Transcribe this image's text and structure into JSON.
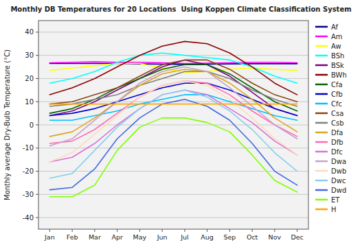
{
  "chart_data": {
    "type": "line",
    "title": "Monthly DB Temperatures for 20 Locations  Using Koppen Climate Classification System",
    "ylabel": "Monthly average Dry-Bulb Temperature (°C)",
    "categories": [
      "Jan",
      "Feb",
      "Mar",
      "Apr",
      "May",
      "Jun",
      "Jul",
      "Aug",
      "Sep",
      "Oct",
      "Nov",
      "Dec"
    ],
    "ylim": [
      -45,
      45
    ],
    "yticks": [
      -40,
      -30,
      -20,
      -10,
      0,
      10,
      20,
      30,
      40
    ],
    "grid": true,
    "legend": "right",
    "series": [
      {
        "name": "Af",
        "color": "#00008B",
        "values": [
          26.5,
          26.5,
          26.5,
          26.5,
          26.3,
          26.2,
          26.1,
          26.2,
          26.3,
          26.4,
          26.4,
          26.4
        ]
      },
      {
        "name": "Am",
        "color": "#FF00FF",
        "values": [
          26.8,
          27.0,
          27.2,
          27.0,
          27.0,
          26.8,
          26.5,
          26.6,
          26.8,
          27.0,
          27.0,
          26.8
        ]
      },
      {
        "name": "Aw",
        "color": "#FFFF00",
        "values": [
          23.5,
          24.5,
          25.5,
          26.5,
          26.5,
          24.5,
          22.5,
          23.0,
          24.0,
          24.5,
          24.0,
          23.5
        ]
      },
      {
        "name": "BSh",
        "color": "#00FFFF",
        "values": [
          18,
          20,
          23,
          27,
          30,
          31,
          30,
          29,
          28,
          25,
          21,
          18
        ]
      },
      {
        "name": "BSk",
        "color": "#800080",
        "values": [
          4,
          6,
          10,
          15,
          20,
          25,
          28,
          26,
          21,
          14,
          7,
          4
        ]
      },
      {
        "name": "BWh",
        "color": "#8B0000",
        "values": [
          13,
          16,
          20,
          25,
          30,
          34,
          36,
          35,
          31,
          25,
          18,
          13
        ]
      },
      {
        "name": "Cfa",
        "color": "#006400",
        "values": [
          5,
          7,
          11,
          16,
          20,
          24,
          26,
          26,
          22,
          16,
          10,
          6
        ]
      },
      {
        "name": "Cfb",
        "color": "#0000CD",
        "values": [
          4,
          5,
          7,
          10,
          13,
          16,
          18,
          18,
          15,
          11,
          7,
          4
        ]
      },
      {
        "name": "Cfc",
        "color": "#00BFFF",
        "values": [
          2,
          2,
          4,
          6,
          9,
          11,
          13,
          13,
          10,
          7,
          4,
          2
        ]
      },
      {
        "name": "Csa",
        "color": "#8B4513",
        "values": [
          9,
          10,
          13,
          16,
          21,
          26,
          28,
          28,
          24,
          18,
          13,
          10
        ]
      },
      {
        "name": "Csb",
        "color": "#808080",
        "values": [
          8,
          9,
          11,
          13,
          17,
          20,
          23,
          23,
          20,
          15,
          11,
          8
        ]
      },
      {
        "name": "Dfa",
        "color": "#DAA520",
        "values": [
          -5,
          -3,
          3,
          10,
          17,
          22,
          24,
          23,
          18,
          11,
          3,
          -3
        ]
      },
      {
        "name": "Dfb",
        "color": "#FF69B4",
        "values": [
          -8,
          -7,
          -2,
          5,
          12,
          17,
          19,
          18,
          13,
          6,
          0,
          -5
        ]
      },
      {
        "name": "Dfc",
        "color": "#DA70D6",
        "values": [
          -16,
          -14,
          -8,
          0,
          7,
          13,
          15,
          13,
          7,
          1,
          -7,
          -13
        ]
      },
      {
        "name": "Dwa",
        "color": "#C8A0C8",
        "values": [
          -9,
          -6,
          2,
          10,
          18,
          23,
          25,
          23,
          16,
          8,
          0,
          -6
        ]
      },
      {
        "name": "Dwb",
        "color": "#FFDAB9",
        "values": [
          -16,
          -12,
          -4,
          4,
          12,
          17,
          19,
          17,
          11,
          3,
          -6,
          -13
        ]
      },
      {
        "name": "Dwc",
        "color": "#87CEEB",
        "values": [
          -23,
          -21,
          -11,
          -1,
          7,
          13,
          15,
          12,
          6,
          -2,
          -12,
          -20
        ]
      },
      {
        "name": "Dwd",
        "color": "#4169E1",
        "values": [
          -28,
          -27,
          -19,
          -6,
          3,
          9,
          11,
          8,
          2,
          -8,
          -20,
          -26
        ]
      },
      {
        "name": "ET",
        "color": "#7FFF00",
        "values": [
          -31,
          -31,
          -26,
          -11,
          -1,
          3,
          3,
          1,
          -3,
          -13,
          -24,
          -29
        ]
      },
      {
        "name": "H",
        "color": "#FFA500",
        "values": [
          9,
          9,
          9,
          9,
          9,
          9,
          9,
          9,
          9,
          9,
          9,
          9
        ]
      }
    ]
  }
}
